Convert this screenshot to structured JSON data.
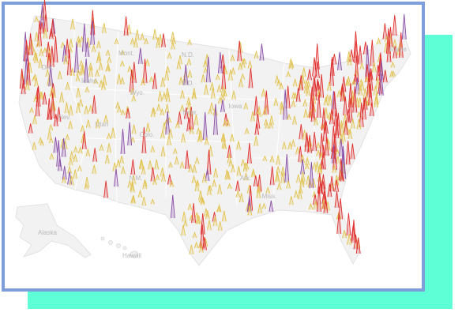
{
  "map": {
    "labels": [
      "Mont.",
      "N.D.",
      "Maine",
      "Ore.",
      "Idaho",
      "Wyo.",
      "S.D.",
      "Nev.",
      "Utah",
      "Colo.",
      "Nebr.",
      "Iowa",
      "N.M.",
      "Ark.",
      "Miss.",
      "Alaska",
      "Hawaii"
    ]
  }
}
